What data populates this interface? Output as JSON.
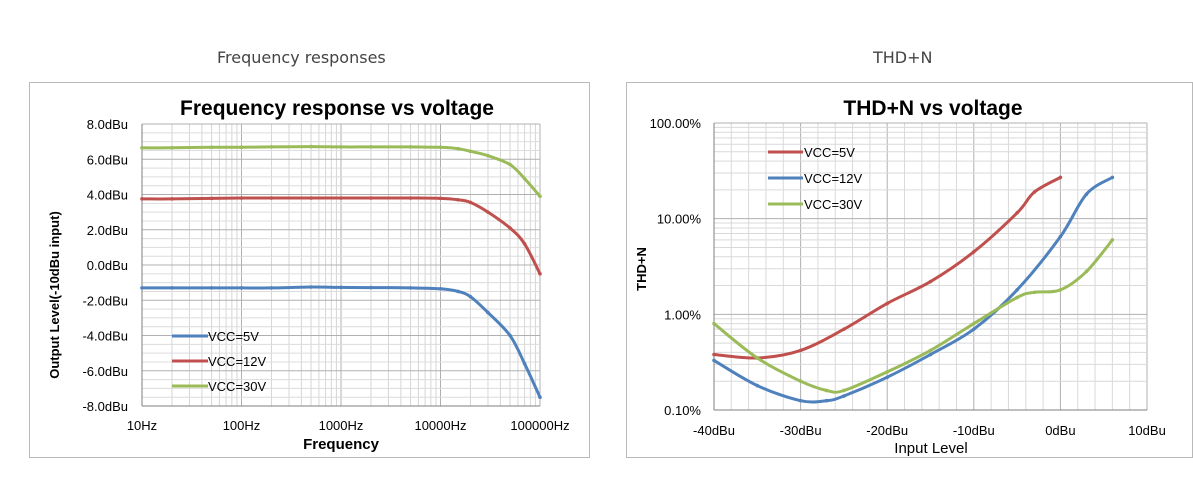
{
  "captions": {
    "left": "Frequency responses",
    "right": "THD+N"
  },
  "chart_data": [
    {
      "type": "line",
      "title": "Frequency response vs voltage",
      "xlabel": "Frequency",
      "ylabel": "Output Level(-10dBu input)",
      "x_scale": "log",
      "xlim": [
        10,
        100000
      ],
      "ylim": [
        -8,
        8
      ],
      "x_ticks": [
        "10Hz",
        "100Hz",
        "1000Hz",
        "10000Hz",
        "100000Hz"
      ],
      "y_ticks": [
        "8.0dBu",
        "6.0dBu",
        "4.0dBu",
        "2.0dBu",
        "0.0dBu",
        "-2.0dBu",
        "-4.0dBu",
        "-6.0dBu",
        "-8.0dBu"
      ],
      "grid": true,
      "legend_position": "bottom-left",
      "series": [
        {
          "name": "VCC=5V",
          "color": "#4f81bd",
          "x": [
            10,
            20,
            50,
            100,
            200,
            500,
            1000,
            2000,
            5000,
            10000,
            15000,
            20000,
            30000,
            50000,
            70000,
            100000
          ],
          "y": [
            -1.3,
            -1.3,
            -1.3,
            -1.3,
            -1.3,
            -1.25,
            -1.27,
            -1.28,
            -1.3,
            -1.35,
            -1.5,
            -1.8,
            -2.7,
            -4.0,
            -5.6,
            -7.5
          ]
        },
        {
          "name": "VCC=12V",
          "color": "#c0504d",
          "x": [
            10,
            20,
            50,
            100,
            200,
            500,
            1000,
            2000,
            5000,
            10000,
            15000,
            20000,
            30000,
            50000,
            70000,
            100000
          ],
          "y": [
            3.75,
            3.75,
            3.78,
            3.8,
            3.8,
            3.8,
            3.8,
            3.8,
            3.8,
            3.78,
            3.7,
            3.55,
            3.0,
            2.1,
            1.2,
            -0.5
          ]
        },
        {
          "name": "VCC=30V",
          "color": "#9bbb59",
          "x": [
            10,
            20,
            50,
            100,
            200,
            500,
            1000,
            2000,
            5000,
            10000,
            15000,
            20000,
            30000,
            50000,
            70000,
            100000
          ],
          "y": [
            6.65,
            6.65,
            6.68,
            6.68,
            6.7,
            6.72,
            6.7,
            6.7,
            6.7,
            6.68,
            6.6,
            6.45,
            6.2,
            5.7,
            4.9,
            3.9
          ]
        }
      ]
    },
    {
      "type": "line",
      "title": "THD+N vs voltage",
      "xlabel": "Input Level",
      "ylabel": "THD+N",
      "y_scale": "log",
      "xlim": [
        -40,
        10
      ],
      "ylim": [
        0.1,
        100
      ],
      "x_ticks": [
        "-40dBu",
        "-30dBu",
        "-20dBu",
        "-10dBu",
        "0dBu",
        "10dBu"
      ],
      "y_ticks": [
        "100.00%",
        "10.00%",
        "1.00%",
        "0.10%"
      ],
      "grid": true,
      "legend_position": "top-left",
      "series": [
        {
          "name": "VCC=5V",
          "color": "#c0504d",
          "x": [
            -40,
            -35,
            -30,
            -25,
            -20,
            -15,
            -10,
            -5,
            -3,
            0
          ],
          "y": [
            0.38,
            0.35,
            0.42,
            0.7,
            1.3,
            2.2,
            4.5,
            11.5,
            19,
            27
          ]
        },
        {
          "name": "VCC=12V",
          "color": "#4f81bd",
          "x": [
            -40,
            -35,
            -30,
            -27,
            -25,
            -20,
            -15,
            -10,
            -5,
            0,
            3,
            6
          ],
          "y": [
            0.33,
            0.18,
            0.125,
            0.125,
            0.14,
            0.22,
            0.38,
            0.7,
            1.8,
            6.5,
            18,
            27
          ]
        },
        {
          "name": "VCC=30V",
          "color": "#9bbb59",
          "x": [
            -40,
            -35,
            -30,
            -27,
            -25,
            -20,
            -15,
            -10,
            -5,
            -3,
            0,
            3,
            6
          ],
          "y": [
            0.8,
            0.35,
            0.2,
            0.16,
            0.16,
            0.25,
            0.42,
            0.8,
            1.5,
            1.7,
            1.8,
            2.8,
            6.0
          ]
        }
      ]
    }
  ]
}
